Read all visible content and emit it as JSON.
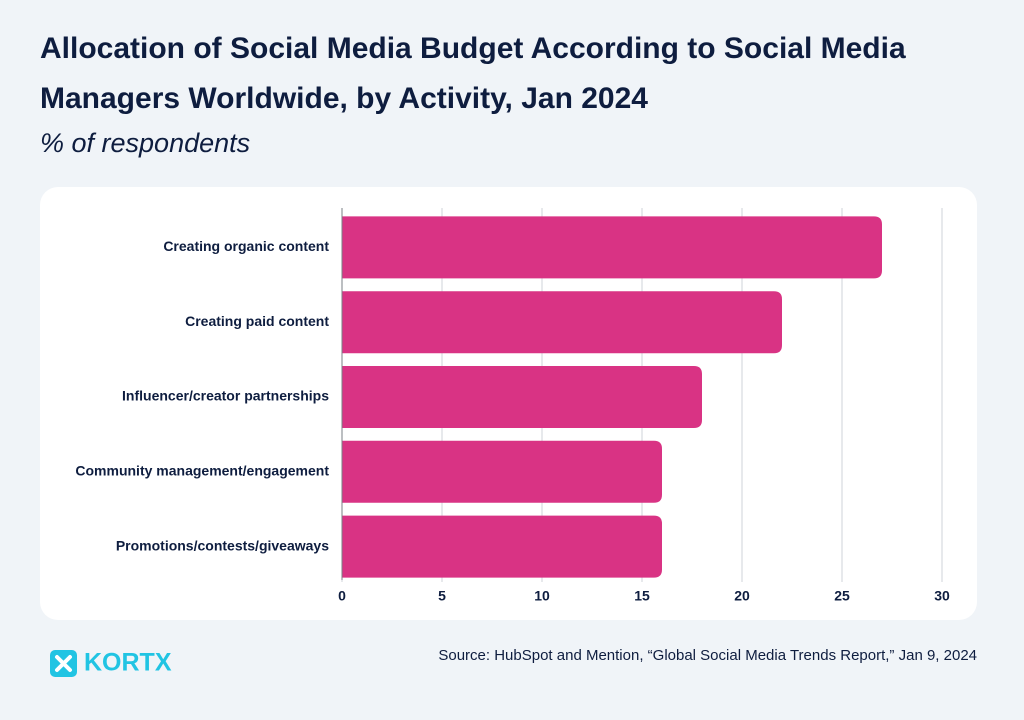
{
  "chart_data": {
    "type": "hbar",
    "title": "Allocation of Social Media Budget According to Social Media Managers Worldwide, by Activity, Jan 2024",
    "subtitle": "% of respondents",
    "categories": [
      "Creating organic content",
      "Creating paid content",
      "Influencer/creator partnerships",
      "Community management/engagement",
      "Promotions/contests/giveaways"
    ],
    "values": [
      27,
      22,
      18,
      16,
      16
    ],
    "color": "#d93384",
    "xlim": [
      0,
      30
    ],
    "xticks": [
      0,
      5,
      10,
      15,
      20,
      25,
      30
    ],
    "grid": true,
    "source": "Source: HubSpot and Mention, “Global Social Media Trends Report,” Jan 9, 2024",
    "logo": "KORTX"
  }
}
